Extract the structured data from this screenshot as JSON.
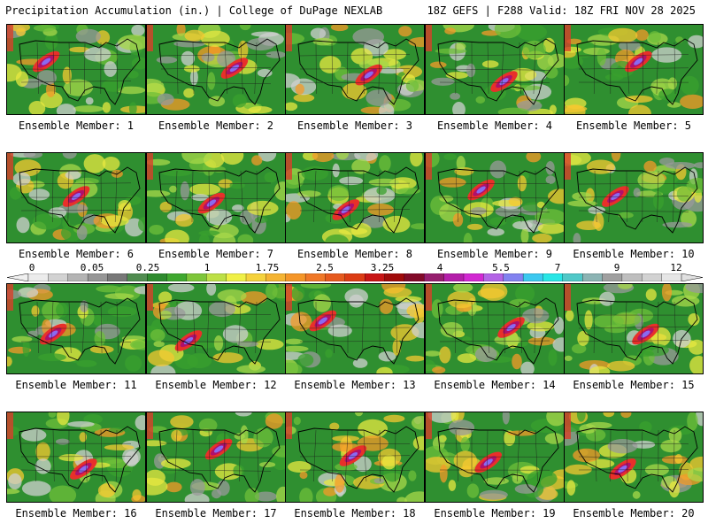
{
  "header": {
    "title_left": "Precipitation Accumulation (in.) | College of DuPage NEXLAB",
    "title_right": "18Z GEFS | F288 Valid: 18Z FRI NOV 28 2025"
  },
  "panels": [
    {
      "label": "Ensemble Member: 1"
    },
    {
      "label": "Ensemble Member: 2"
    },
    {
      "label": "Ensemble Member: 3"
    },
    {
      "label": "Ensemble Member: 4"
    },
    {
      "label": "Ensemble Member: 5"
    },
    {
      "label": "Ensemble Member: 6"
    },
    {
      "label": "Ensemble Member: 7"
    },
    {
      "label": "Ensemble Member: 8"
    },
    {
      "label": "Ensemble Member: 9"
    },
    {
      "label": "Ensemble Member: 10"
    },
    {
      "label": "Ensemble Member: 11"
    },
    {
      "label": "Ensemble Member: 12"
    },
    {
      "label": "Ensemble Member: 13"
    },
    {
      "label": "Ensemble Member: 14"
    },
    {
      "label": "Ensemble Member: 15"
    },
    {
      "label": "Ensemble Member: 16"
    },
    {
      "label": "Ensemble Member: 17"
    },
    {
      "label": "Ensemble Member: 18"
    },
    {
      "label": "Ensemble Member: 19"
    },
    {
      "label": "Ensemble Member: 20"
    }
  ],
  "colorbar": {
    "tick_labels": [
      "0",
      "0.05",
      "0.25",
      "1",
      "1.75",
      "2.5",
      "3.25",
      "4",
      "5.5",
      "7",
      "9",
      "12"
    ],
    "colors": [
      "#ececec",
      "#d2d2d2",
      "#b4b4b4",
      "#969696",
      "#787878",
      "#508c50",
      "#2e8b2e",
      "#3fa82f",
      "#7ec63a",
      "#bde046",
      "#f0f046",
      "#f5d23c",
      "#f5b432",
      "#f59628",
      "#f07828",
      "#e65a1e",
      "#dc3c14",
      "#c81414",
      "#a00a0a",
      "#820a28",
      "#961e6e",
      "#b41eaa",
      "#d228d2",
      "#b464e6",
      "#8282f0",
      "#3cc8f0",
      "#28e6e6",
      "#50c8c8",
      "#8cb4b4",
      "#a0a0a0",
      "#bebebe",
      "#d2d2d2",
      "#e6e6e6"
    ]
  }
}
